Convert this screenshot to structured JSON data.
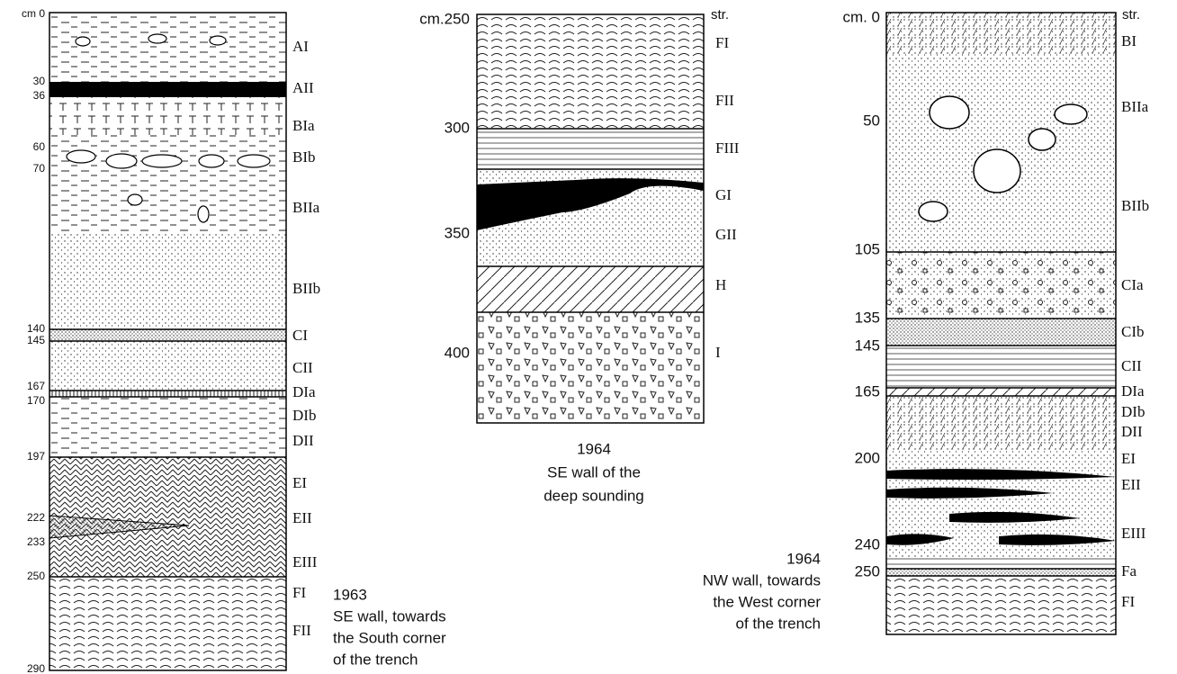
{
  "sections": [
    {
      "depths": [
        "cm 0",
        "30",
        "36",
        "60",
        "70",
        "140",
        "145",
        "167",
        "170",
        "197",
        "222",
        "233",
        "250",
        "290"
      ],
      "layers": [
        "AI",
        "AII",
        "BIa",
        "BIb",
        "BIIa",
        "BIIb",
        "CI",
        "CII",
        "DIa",
        "DIb",
        "DII",
        "EI",
        "EII",
        "EIII",
        "FI",
        "FII"
      ],
      "caption": [
        "1963",
        "SE wall, towards",
        "the South corner",
        "of the trench"
      ]
    },
    {
      "depths": [
        "cm.250",
        "300",
        "350",
        "400"
      ],
      "header": "str.",
      "layers": [
        "FI",
        "FII",
        "FIII",
        "GI",
        "GII",
        "H",
        "I"
      ],
      "caption": [
        "1964",
        "SE wall of the",
        "deep sounding"
      ]
    },
    {
      "depths": [
        "cm. 0",
        "50",
        "105",
        "135",
        "145",
        "165",
        "200",
        "240",
        "250"
      ],
      "header": "str.",
      "layers": [
        "BI",
        "BIIa",
        "BIIb",
        "CIa",
        "CIb",
        "CII",
        "DIa",
        "DIb",
        "DII",
        "EI",
        "EII",
        "EIII",
        "Fa",
        "FI"
      ],
      "caption": [
        "1964",
        "NW wall, towards",
        "the West corner",
        "of the trench"
      ]
    }
  ]
}
